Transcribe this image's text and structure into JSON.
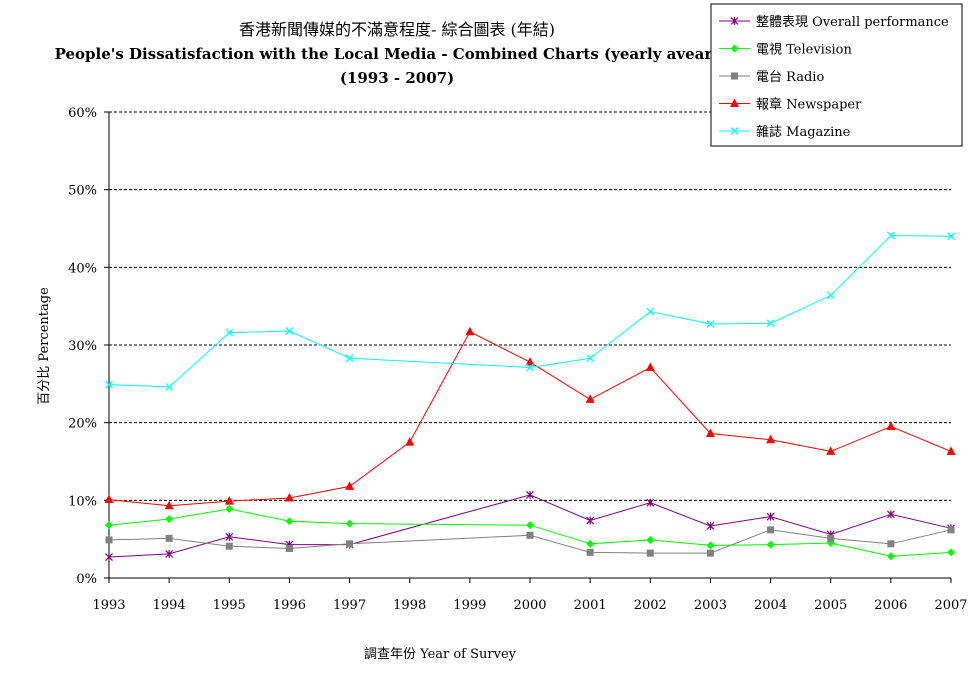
{
  "chart_data": {
    "type": "line",
    "title": "香港新聞傳媒的不滿意程度- 綜合圖表 (年結)",
    "subtitle": "People's Dissatisfaction with the Local Media - Combined Charts (yearly avearge)",
    "subtitle2": "(1993 - 2007)",
    "xlabel": "調查年份 Year of Survey",
    "ylabel": "百分比 Percentage",
    "ylim": [
      0,
      60
    ],
    "y_ticks": [
      "0%",
      "10%",
      "20%",
      "30%",
      "40%",
      "50%",
      "60%"
    ],
    "y_tick_values": [
      0,
      10,
      20,
      30,
      40,
      50,
      60
    ],
    "x": [
      "1993",
      "1994",
      "1995",
      "1996",
      "1997",
      "1998",
      "1999",
      "2000",
      "2001",
      "2002",
      "2003",
      "2004",
      "2005",
      "2006",
      "2007"
    ],
    "grid": "horizontal dashed",
    "legend_position": "top-right",
    "series": [
      {
        "name": "整體表現 Overall performance",
        "color": "#800080",
        "marker": "star",
        "points": [
          [
            1993,
            2.7
          ],
          [
            1994,
            3.1
          ],
          [
            1995,
            5.3
          ],
          [
            1996,
            4.3
          ],
          [
            1997,
            4.3
          ],
          [
            2000,
            10.7
          ],
          [
            2001,
            7.4
          ],
          [
            2002,
            9.7
          ],
          [
            2003,
            6.7
          ],
          [
            2004,
            7.9
          ],
          [
            2005,
            5.6
          ],
          [
            2006,
            8.2
          ],
          [
            2007,
            6.4
          ]
        ]
      },
      {
        "name": "電視 Television",
        "color": "#00ff00",
        "marker": "diamond",
        "points": [
          [
            1993,
            6.8
          ],
          [
            1994,
            7.6
          ],
          [
            1995,
            8.9
          ],
          [
            1996,
            7.3
          ],
          [
            1997,
            7.0
          ],
          [
            2000,
            6.8
          ],
          [
            2001,
            4.4
          ],
          [
            2002,
            4.9
          ],
          [
            2003,
            4.2
          ],
          [
            2004,
            4.3
          ],
          [
            2005,
            4.5
          ],
          [
            2006,
            2.8
          ],
          [
            2007,
            3.3
          ]
        ]
      },
      {
        "name": "電台 Radio",
        "color": "#808080",
        "marker": "square",
        "points": [
          [
            1993,
            4.9
          ],
          [
            1994,
            5.1
          ],
          [
            1995,
            4.1
          ],
          [
            1996,
            3.8
          ],
          [
            1997,
            4.4
          ],
          [
            2000,
            5.5
          ],
          [
            2001,
            3.3
          ],
          [
            2002,
            3.2
          ],
          [
            2003,
            3.2
          ],
          [
            2004,
            6.2
          ],
          [
            2005,
            5.1
          ],
          [
            2006,
            4.4
          ],
          [
            2007,
            6.2
          ]
        ]
      },
      {
        "name": "報章 Newspaper",
        "color": "#ff0000",
        "marker": "triangle",
        "points": [
          [
            1993,
            10.1
          ],
          [
            1994,
            9.3
          ],
          [
            1995,
            9.9
          ],
          [
            1996,
            10.3
          ],
          [
            1997,
            11.8
          ],
          [
            1998,
            17.5
          ],
          [
            1999,
            31.7
          ],
          [
            2000,
            27.8
          ],
          [
            2001,
            23.0
          ],
          [
            2002,
            27.1
          ],
          [
            2003,
            18.6
          ],
          [
            2004,
            17.8
          ],
          [
            2005,
            16.3
          ],
          [
            2006,
            19.5
          ],
          [
            2007,
            16.3
          ]
        ]
      },
      {
        "name": "雜誌 Magazine",
        "color": "#00ffff",
        "marker": "x",
        "points": [
          [
            1993,
            24.9
          ],
          [
            1994,
            24.6
          ],
          [
            1995,
            31.6
          ],
          [
            1996,
            31.8
          ],
          [
            1997,
            28.3
          ],
          [
            2000,
            27.1
          ],
          [
            2001,
            28.3
          ],
          [
            2002,
            34.3
          ],
          [
            2003,
            32.7
          ],
          [
            2004,
            32.8
          ],
          [
            2005,
            36.4
          ],
          [
            2006,
            44.1
          ],
          [
            2007,
            44.0
          ]
        ]
      }
    ]
  }
}
